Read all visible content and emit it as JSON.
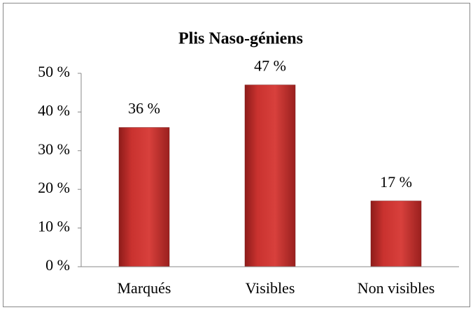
{
  "chart_data": {
    "type": "bar",
    "title": "Plis Naso-géniens",
    "categories": [
      "Marqués",
      "Visibles",
      "Non visibles"
    ],
    "values": [
      36,
      47,
      17
    ],
    "value_labels": [
      "36 %",
      "47 %",
      "17 %"
    ],
    "color": "#c0302e",
    "ylim": [
      0,
      50
    ],
    "yticks": [
      {
        "value": 0,
        "label": "0 %"
      },
      {
        "value": 10,
        "label": "10 %"
      },
      {
        "value": 20,
        "label": "20 %"
      },
      {
        "value": 30,
        "label": "30 %"
      },
      {
        "value": 40,
        "label": "40 %"
      },
      {
        "value": 50,
        "label": "50 %"
      }
    ],
    "grid": false
  }
}
